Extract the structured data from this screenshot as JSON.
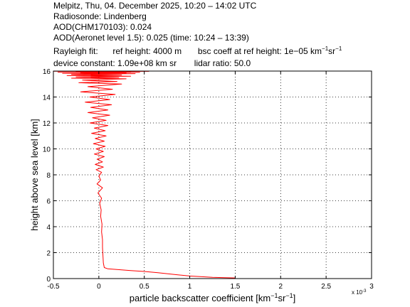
{
  "header": {
    "line1": "Melpitz, Thu, 04. December 2025, 10:20 – 14:02 UTC",
    "line2": "Radiosonde: Lindenberg",
    "line3": "AOD(CHM170103): 0.024",
    "line4": "AOD(Aeronet level 1.5): 0.025   (time: 10:24 – 13:39)",
    "line5_a": "Rayleigh fit:",
    "line5_b": "ref height: 4000 m",
    "line5_c": "bsc coeff at ref height: 1e−05 km",
    "line5_c_sup1": "−1",
    "line5_c_mid": "sr",
    "line5_c_sup2": "−1",
    "line6_a": "device constant: 1.09e+08 km sr",
    "line6_b": "lidar ratio: 50.0"
  },
  "colors": {
    "profile": "#ff0000",
    "axes": "#000000",
    "grid": "#000000",
    "background": "#ffffff"
  },
  "chart_data": {
    "type": "line",
    "title": "",
    "xlabel_main": "particle backscatter coefficient [km",
    "xlabel_sup1": "−1",
    "xlabel_mid": "sr",
    "xlabel_sup2": "−1",
    "xlabel_end": "]",
    "ylabel": "height above sea level [km]",
    "x_multiplier_label": "x 10",
    "x_multiplier_exp": "-3",
    "xlim": [
      -0.5,
      3
    ],
    "ylim": [
      0,
      16
    ],
    "xticks": [
      -0.5,
      0,
      0.5,
      1,
      1.5,
      2,
      2.5,
      3
    ],
    "xtick_labels": [
      "-0.5",
      "0",
      "0.5",
      "1",
      "1.5",
      "2",
      "2.5",
      "3"
    ],
    "yticks": [
      0,
      2,
      4,
      6,
      8,
      10,
      12,
      14,
      16
    ],
    "ytick_labels": [
      "0",
      "2",
      "4",
      "6",
      "8",
      "10",
      "12",
      "14",
      "16"
    ],
    "grid": true,
    "grid_style": "dotted",
    "series": [
      {
        "color": "#ff0000",
        "x": [
          1.5,
          1.25,
          1.0,
          0.85,
          0.65,
          0.5,
          0.35,
          0.2,
          0.1,
          0.06,
          0.05,
          0.045,
          0.04,
          0.04,
          0.03,
          0.035,
          0.02,
          0.025,
          0.01,
          0.03,
          -0.01,
          0.04,
          -0.02,
          0.02,
          0.0,
          0.03,
          -0.03,
          0.05,
          -0.04,
          0.04,
          -0.02,
          0.06,
          -0.05,
          0.05,
          -0.03,
          0.07,
          -0.06,
          0.06,
          -0.04,
          0.08,
          -0.08,
          0.07,
          -0.05,
          0.1,
          -0.1,
          0.08,
          -0.07,
          0.12,
          -0.12,
          0.1,
          -0.09,
          0.14,
          -0.15,
          0.12,
          -0.1,
          0.18,
          -0.2,
          0.15,
          -0.12,
          0.25,
          -0.22,
          0.2,
          -0.18,
          0.3,
          -0.3,
          0.22,
          -0.25,
          0.35,
          -0.35,
          0.25,
          -0.3,
          0.4,
          -0.4,
          0.3,
          -0.2,
          0.45,
          -0.45,
          0.35,
          -0.25,
          0.55,
          -0.5,
          0.3
        ],
        "y": [
          0.05,
          0.1,
          0.2,
          0.3,
          0.45,
          0.55,
          0.62,
          0.7,
          0.75,
          0.85,
          1.2,
          1.8,
          2.4,
          3.0,
          3.6,
          4.2,
          4.8,
          5.3,
          5.8,
          6.2,
          6.6,
          7.0,
          7.3,
          7.6,
          7.9,
          8.2,
          8.4,
          8.6,
          8.8,
          9.0,
          9.2,
          9.4,
          9.6,
          9.8,
          10.0,
          10.2,
          10.4,
          10.6,
          10.8,
          11.0,
          11.2,
          11.4,
          11.6,
          11.8,
          12.0,
          12.2,
          12.4,
          12.6,
          12.8,
          13.0,
          13.2,
          13.4,
          13.6,
          13.8,
          14.0,
          14.2,
          14.4,
          14.6,
          14.8,
          15.0,
          15.1,
          15.2,
          15.3,
          15.4,
          15.45,
          15.5,
          15.55,
          15.6,
          15.65,
          15.7,
          15.75,
          15.8,
          15.82,
          15.85,
          15.87,
          15.9,
          15.92,
          15.94,
          15.96,
          15.98,
          15.99,
          16.0
        ]
      }
    ]
  }
}
